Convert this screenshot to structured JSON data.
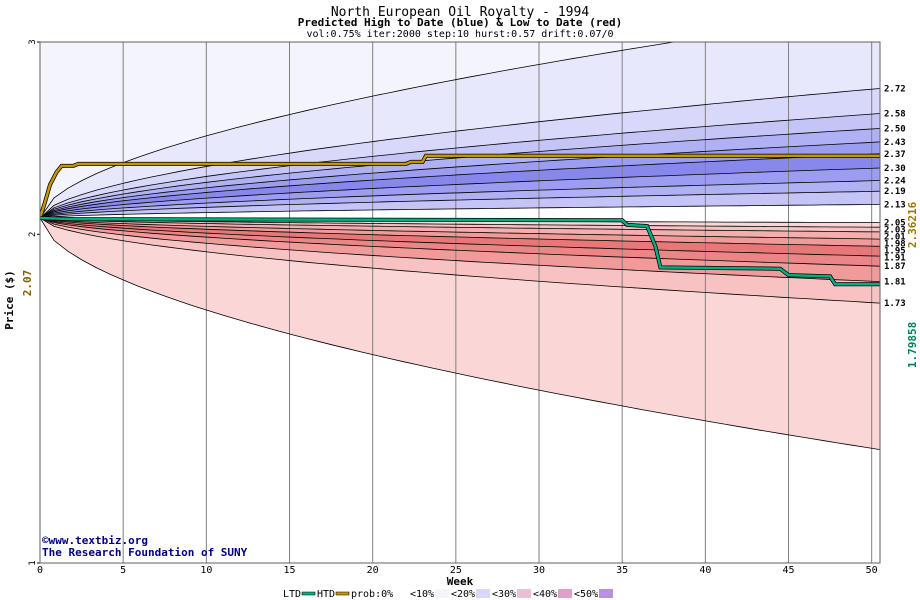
{
  "chart_data": {
    "type": "area",
    "title": "North European Oil Royalty - 1994",
    "subtitle": "Predicted High to Date (blue) &  Low to Date (red)",
    "params": "vol:0.75% iter:2000 step:10 hurst:0.57 drift:0.07/0",
    "xlabel": "Week",
    "ylabel": "Price ($)",
    "xlim": [
      0,
      50.5
    ],
    "ylim": [
      1,
      3
    ],
    "y_scale": "log",
    "x_ticks": [
      0,
      5,
      10,
      15,
      20,
      25,
      30,
      35,
      40,
      45,
      50
    ],
    "y_ticks": [
      1,
      2,
      3
    ],
    "start_value": "2.07",
    "start_price": 2.07,
    "grid": true,
    "high_quantile_end_labels": [
      "2.72",
      "2.58",
      "2.50",
      "2.43",
      "2.37",
      "2.30",
      "2.24",
      "2.19",
      "2.13"
    ],
    "low_quantile_end_labels": [
      "2.05",
      "2.03",
      "2.01",
      "1.98",
      "1.95",
      "1.91",
      "1.87",
      "1.81",
      "1.73"
    ],
    "high_quantiles": [
      {
        "level": 0.05,
        "end": 3.2
      },
      {
        "level": 0.1,
        "end": 2.72
      },
      {
        "level": 0.2,
        "end": 2.58
      },
      {
        "level": 0.3,
        "end": 2.5
      },
      {
        "level": 0.4,
        "end": 2.43
      },
      {
        "level": 0.5,
        "end": 2.37
      },
      {
        "level": 0.6,
        "end": 2.3
      },
      {
        "level": 0.7,
        "end": 2.24
      },
      {
        "level": 0.8,
        "end": 2.19
      },
      {
        "level": 0.9,
        "end": 2.13
      }
    ],
    "low_quantiles": [
      {
        "level": 0.9,
        "end": 2.05
      },
      {
        "level": 0.8,
        "end": 2.03
      },
      {
        "level": 0.7,
        "end": 2.01
      },
      {
        "level": 0.6,
        "end": 1.98
      },
      {
        "level": 0.5,
        "end": 1.95
      },
      {
        "level": 0.4,
        "end": 1.91
      },
      {
        "level": 0.3,
        "end": 1.87
      },
      {
        "level": 0.2,
        "end": 1.81
      },
      {
        "level": 0.1,
        "end": 1.73
      },
      {
        "level": 0.05,
        "end": 1.27
      }
    ],
    "htd": {
      "name": "HTD",
      "color": "#c89600",
      "end_label": "2.36216",
      "points": [
        [
          0,
          2.07
        ],
        [
          0.3,
          2.14
        ],
        [
          0.6,
          2.22
        ],
        [
          1,
          2.28
        ],
        [
          1.3,
          2.31
        ],
        [
          2,
          2.31
        ],
        [
          2.3,
          2.32
        ],
        [
          22,
          2.32
        ],
        [
          22.3,
          2.33
        ],
        [
          23,
          2.33
        ],
        [
          23.2,
          2.36
        ],
        [
          50.5,
          2.36
        ]
      ]
    },
    "ltd": {
      "name": "LTD",
      "color": "#00b080",
      "end_label": "1.79858",
      "points": [
        [
          0,
          2.07
        ],
        [
          2,
          2.065
        ],
        [
          35,
          2.06
        ],
        [
          35.3,
          2.04
        ],
        [
          36.5,
          2.035
        ],
        [
          37,
          1.95
        ],
        [
          37.3,
          1.865
        ],
        [
          44.5,
          1.86
        ],
        [
          45,
          1.835
        ],
        [
          47.5,
          1.83
        ],
        [
          47.8,
          1.8
        ],
        [
          50.5,
          1.8
        ]
      ]
    },
    "legend": {
      "placement": "bottom",
      "items": [
        "LTD",
        "HTD",
        "prob:0%",
        "<10%",
        "<20%",
        "<30%",
        "<40%",
        "<50%"
      ],
      "colors": {
        "ltd": "#00b080",
        "htd": "#c89600"
      }
    },
    "band_colors": {
      "high": [
        "#f4f4fc",
        "#e8e8fc",
        "#d8d8fa",
        "#c4c4f6",
        "#b0b0f4",
        "#9c9cf0",
        "#8888ec"
      ],
      "low": [
        "#fce4e4",
        "#fad6d6",
        "#f8c2c2",
        "#f4aeae",
        "#f09a9a",
        "#ec8686",
        "#e87878"
      ]
    }
  },
  "credit": {
    "site": "www.textbiz.org",
    "org": "The Research Foundation of SUNY",
    "symbol": "©"
  }
}
